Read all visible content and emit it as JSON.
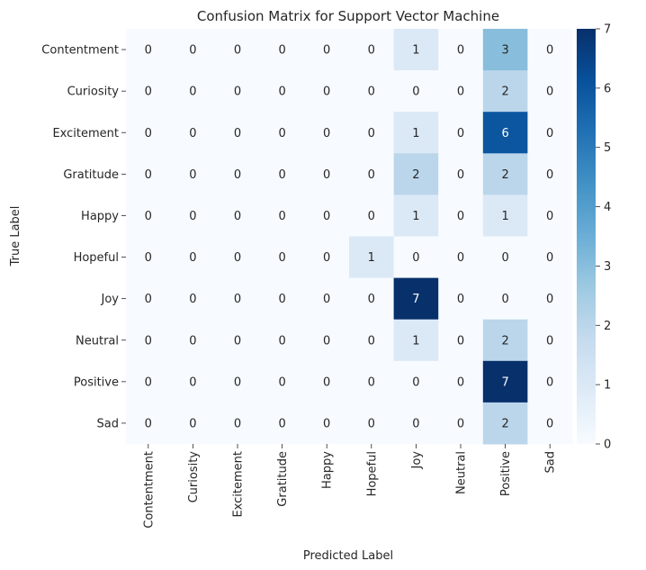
{
  "chart_data": {
    "type": "heatmap",
    "title": "Confusion Matrix for Support Vector Machine",
    "xlabel": "Predicted Label",
    "ylabel": "True Label",
    "row_labels": [
      " Contentment",
      " Curiosity",
      " Excitement",
      " Gratitude",
      " Happy",
      " Hopeful",
      " Joy",
      " Neutral",
      " Positive ",
      " Sad"
    ],
    "col_labels": [
      " Contentment",
      " Curiosity",
      " Excitement",
      " Gratitude",
      " Happy",
      " Hopeful",
      " Joy",
      " Neutral",
      " Positive ",
      " Sad"
    ],
    "values": [
      [
        0,
        0,
        0,
        0,
        0,
        0,
        1,
        0,
        3,
        0
      ],
      [
        0,
        0,
        0,
        0,
        0,
        0,
        0,
        0,
        2,
        0
      ],
      [
        0,
        0,
        0,
        0,
        0,
        0,
        1,
        0,
        6,
        0
      ],
      [
        0,
        0,
        0,
        0,
        0,
        0,
        2,
        0,
        2,
        0
      ],
      [
        0,
        0,
        0,
        0,
        0,
        0,
        1,
        0,
        1,
        0
      ],
      [
        0,
        0,
        0,
        0,
        0,
        1,
        0,
        0,
        0,
        0
      ],
      [
        0,
        0,
        0,
        0,
        0,
        0,
        7,
        0,
        0,
        0
      ],
      [
        0,
        0,
        0,
        0,
        0,
        0,
        1,
        0,
        2,
        0
      ],
      [
        0,
        0,
        0,
        0,
        0,
        0,
        0,
        0,
        7,
        0
      ],
      [
        0,
        0,
        0,
        0,
        0,
        0,
        0,
        0,
        2,
        0
      ]
    ],
    "colormap": "Blues",
    "colorbar": {
      "min": 0,
      "max": 7,
      "ticks": [
        0,
        1,
        2,
        3,
        4,
        5,
        6,
        7
      ]
    },
    "grid": false
  }
}
